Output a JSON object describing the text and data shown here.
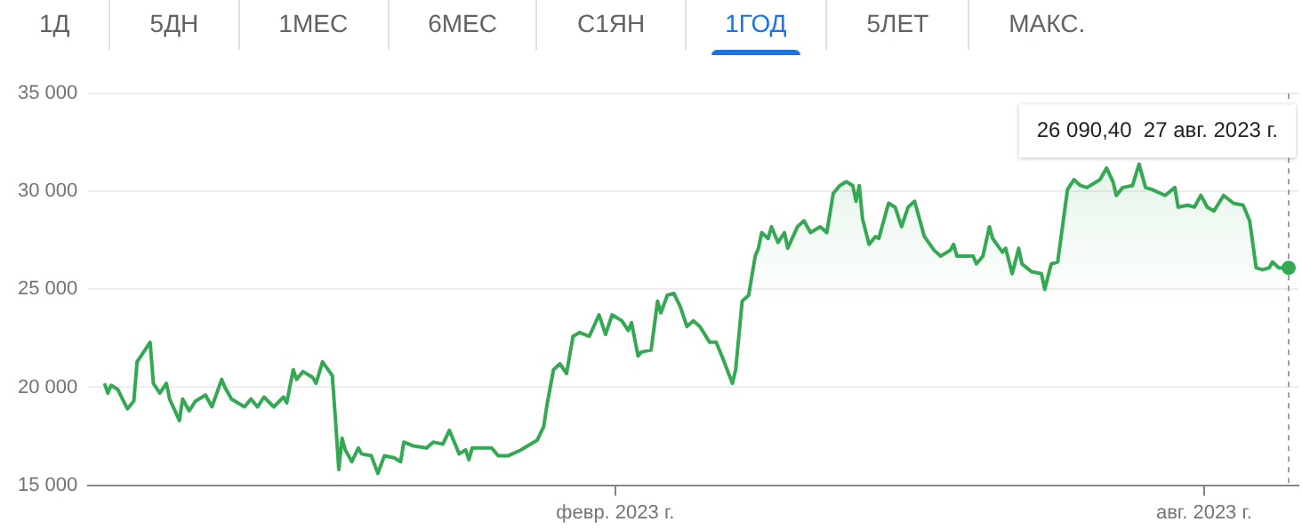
{
  "chart_data": {
    "type": "area",
    "annotations": [
      "1Д",
      "5ДН",
      "1МЕС",
      "6МЕС",
      "С1ЯН",
      "1ГОД",
      "5ЛЕТ",
      "МАКС.",
      "26 090,40  27 авг. 2023 г."
    ],
    "x": [
      "2022-08-28",
      "2022-08-29",
      "2022-08-30",
      "2022-09-01",
      "2022-09-04",
      "2022-09-06",
      "2022-09-07",
      "2022-09-09",
      "2022-09-11",
      "2022-09-12",
      "2022-09-14",
      "2022-09-16",
      "2022-09-17",
      "2022-09-20",
      "2022-09-21",
      "2022-09-23",
      "2022-09-25",
      "2022-09-28",
      "2022-09-30",
      "2022-10-03",
      "2022-10-04",
      "2022-10-06",
      "2022-10-10",
      "2022-10-12",
      "2022-10-14",
      "2022-10-16",
      "2022-10-19",
      "2022-10-22",
      "2022-10-23",
      "2022-10-25",
      "2022-10-26",
      "2022-10-28",
      "2022-10-30",
      "2022-10-31",
      "2022-11-01",
      "2022-11-03",
      "2022-11-06",
      "2022-11-07",
      "2022-11-08",
      "2022-11-09",
      "2022-11-10",
      "2022-11-12",
      "2022-11-14",
      "2022-11-15",
      "2022-11-18",
      "2022-11-20",
      "2022-11-22",
      "2022-11-25",
      "2022-11-27",
      "2022-11-28",
      "2022-12-01",
      "2022-12-05",
      "2022-12-07",
      "2022-12-10",
      "2022-12-12",
      "2022-12-15",
      "2022-12-17",
      "2022-12-18",
      "2022-12-19",
      "2022-12-25",
      "2022-12-27",
      "2022-12-30",
      "2023-01-03",
      "2023-01-05",
      "2023-01-08",
      "2023-01-10",
      "2023-01-11",
      "2023-01-13",
      "2023-01-15",
      "2023-01-17",
      "2023-01-19",
      "2023-01-21",
      "2023-01-24",
      "2023-01-27",
      "2023-01-29",
      "2023-01-31",
      "2023-02-03",
      "2023-02-05",
      "2023-02-06",
      "2023-02-08",
      "2023-02-09",
      "2023-02-12",
      "2023-02-14",
      "2023-02-15",
      "2023-02-17",
      "2023-02-19",
      "2023-02-21",
      "2023-02-23",
      "2023-02-25",
      "2023-02-27",
      "2023-03-02",
      "2023-03-04",
      "2023-03-06",
      "2023-03-09",
      "2023-03-10",
      "2023-03-12",
      "2023-03-14",
      "2023-03-16",
      "2023-03-17",
      "2023-03-18",
      "2023-03-20",
      "2023-03-21",
      "2023-03-23",
      "2023-03-25",
      "2023-03-26",
      "2023-03-29",
      "2023-03-31",
      "2023-04-02",
      "2023-04-05",
      "2023-04-07",
      "2023-04-09",
      "2023-04-11",
      "2023-04-13",
      "2023-04-15",
      "2023-04-16",
      "2023-04-17",
      "2023-04-18",
      "2023-04-20",
      "2023-04-22",
      "2023-04-23",
      "2023-04-26",
      "2023-04-28",
      "2023-04-30",
      "2023-05-02",
      "2023-05-04",
      "2023-05-07",
      "2023-05-10",
      "2023-05-12",
      "2023-05-15",
      "2023-05-16",
      "2023-05-17",
      "2023-05-22",
      "2023-05-23",
      "2023-05-25",
      "2023-05-27",
      "2023-05-28",
      "2023-05-31",
      "2023-06-01",
      "2023-06-03",
      "2023-06-05",
      "2023-06-06",
      "2023-06-09",
      "2023-06-12",
      "2023-06-13",
      "2023-06-15",
      "2023-06-17",
      "2023-06-20",
      "2023-06-22",
      "2023-06-24",
      "2023-06-26",
      "2023-06-30",
      "2023-07-02",
      "2023-07-04",
      "2023-07-05",
      "2023-07-07",
      "2023-07-10",
      "2023-07-12",
      "2023-07-14",
      "2023-07-16",
      "2023-07-20",
      "2023-07-23",
      "2023-07-24",
      "2023-07-27",
      "2023-07-29",
      "2023-07-31",
      "2023-08-02",
      "2023-08-04",
      "2023-08-07",
      "2023-08-10",
      "2023-08-13",
      "2023-08-15",
      "2023-08-17",
      "2023-08-19",
      "2023-08-21",
      "2023-08-22",
      "2023-08-24",
      "2023-08-27"
    ],
    "series": [
      {
        "color": "#34a853",
        "values": [
          20200,
          19700,
          20100,
          19900,
          18900,
          19300,
          21300,
          21800,
          22300,
          20200,
          19700,
          20200,
          19400,
          18300,
          19400,
          18800,
          19300,
          19600,
          19000,
          20400,
          20000,
          19400,
          19000,
          19400,
          19000,
          19500,
          19000,
          19500,
          19200,
          20900,
          20400,
          20800,
          20600,
          20500,
          20200,
          21300,
          20600,
          18300,
          15800,
          17400,
          16800,
          16200,
          16900,
          16600,
          16500,
          15600,
          16500,
          16400,
          16200,
          17200,
          17000,
          16900,
          17200,
          17100,
          17800,
          16600,
          16800,
          16300,
          16900,
          16900,
          16500,
          16500,
          16800,
          17000,
          17300,
          18000,
          19100,
          20900,
          21200,
          20700,
          22600,
          22800,
          22600,
          23700,
          22700,
          23700,
          23400,
          22900,
          23300,
          21600,
          21800,
          21900,
          24400,
          23800,
          24700,
          24800,
          24100,
          23100,
          23400,
          23100,
          22300,
          22300,
          21500,
          20200,
          20900,
          24400,
          24700,
          26700,
          27100,
          27900,
          27600,
          28200,
          27400,
          27900,
          27100,
          28200,
          28500,
          27900,
          28200,
          27900,
          29900,
          30300,
          30500,
          30300,
          29500,
          30300,
          28600,
          27300,
          27700,
          27600,
          29400,
          29200,
          28200,
          29200,
          29500,
          27700,
          27000,
          26700,
          27000,
          27300,
          26700,
          26700,
          26300,
          26700,
          28200,
          27600,
          26900,
          27100,
          25800,
          27100,
          26300,
          25900,
          25800,
          25000,
          26300,
          26400,
          30100,
          30600,
          30300,
          30200,
          30600,
          31200,
          30500,
          29800,
          30200,
          30300,
          31400,
          30200,
          30100,
          29800,
          30200,
          29200,
          29300,
          29200,
          29800,
          29200,
          29000,
          29800,
          29400,
          29300,
          28500,
          26100,
          26000,
          26100,
          26400,
          26100,
          26100
        ]
      }
    ],
    "xlim": [
      "2022-08-23",
      "2023-08-30"
    ],
    "xticks": [
      {
        "value": "2023-02-01",
        "label": "февр. 2023 г."
      },
      {
        "value": "2023-08-01",
        "label": "авг. 2023 г."
      }
    ],
    "ylim": [
      15000,
      35000
    ],
    "yticks": [
      15000,
      20000,
      25000,
      30000,
      35000
    ],
    "grid": "y",
    "ref_lines": [
      {
        "axis": "x",
        "value": "2023-08-27",
        "color": "#9e9e9e",
        "line_style": "dashed"
      }
    ]
  }
}
